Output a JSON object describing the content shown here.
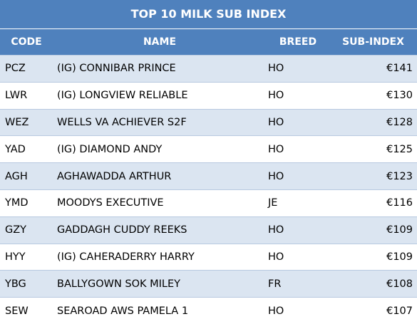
{
  "title": "TOP 10 MILK SUB INDEX",
  "headers": {
    "code": "CODE",
    "name": "NAME",
    "breed": "BREED",
    "sub_index": "SUB-INDEX"
  },
  "rows": [
    {
      "code": "PCZ",
      "name": "(IG) CONNIBAR PRINCE",
      "breed": "HO",
      "sub_index": "€141"
    },
    {
      "code": "LWR",
      "name": "(IG) LONGVIEW RELIABLE",
      "breed": "HO",
      "sub_index": "€130"
    },
    {
      "code": "WEZ",
      "name": "WELLS VA ACHIEVER S2F",
      "breed": "HO",
      "sub_index": "€128"
    },
    {
      "code": "YAD",
      "name": "(IG) DIAMOND ANDY",
      "breed": "HO",
      "sub_index": "€125"
    },
    {
      "code": "AGH",
      "name": "AGHAWADDA ARTHUR",
      "breed": "HO",
      "sub_index": "€123"
    },
    {
      "code": "YMD",
      "name": "MOODYS EXECUTIVE",
      "breed": "JE",
      "sub_index": "€116"
    },
    {
      "code": "GZY",
      "name": "GADDAGH CUDDY REEKS",
      "breed": "HO",
      "sub_index": "€109"
    },
    {
      "code": "HYY",
      "name": "(IG) CAHERADERRY HARRY",
      "breed": "HO",
      "sub_index": "€109"
    },
    {
      "code": "YBG",
      "name": "BALLYGOWN SOK MILEY",
      "breed": "FR",
      "sub_index": "€108"
    },
    {
      "code": "SEW",
      "name": "SEAROAD AWS PAMELA 1",
      "breed": "HO",
      "sub_index": "€107"
    }
  ],
  "colors": {
    "header_bg": "#4f81bd",
    "header_text": "#ffffff",
    "band_alt": "#dbe5f1",
    "band_plain": "#ffffff"
  }
}
